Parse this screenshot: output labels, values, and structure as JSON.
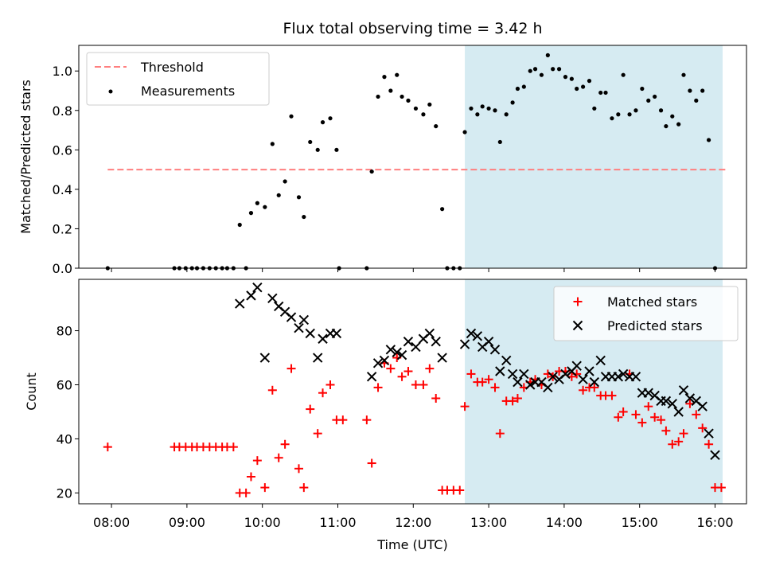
{
  "chart_data": [
    {
      "type": "scatter",
      "title": "Flux total observing time = 3.42 h",
      "ylabel": "Matched/Predicted stars",
      "xlabel": "",
      "ylim": [
        0,
        1.13
      ],
      "yticks": [
        "0.0",
        "0.2",
        "0.4",
        "0.6",
        "0.8",
        "1.0"
      ],
      "shaded_span": {
        "start": "12:41",
        "end": "16:06",
        "color": "#add8e6"
      },
      "threshold": {
        "name": "Threshold",
        "value": 0.5,
        "x_start": "07:57",
        "x_end": "16:10",
        "color": "#ff7f7f",
        "style": "dashed"
      },
      "legend": {
        "position": "upper-left",
        "entries": [
          "Threshold",
          "Measurements"
        ]
      },
      "series": [
        {
          "name": "Measurements",
          "color": "#000000",
          "marker": "dot",
          "points": [
            [
              "07:57",
              0
            ],
            [
              "08:50",
              0
            ],
            [
              "08:54",
              0
            ],
            [
              "08:59",
              0
            ],
            [
              "09:04",
              0
            ],
            [
              "09:08",
              0
            ],
            [
              "09:13",
              0
            ],
            [
              "09:18",
              0
            ],
            [
              "09:23",
              0
            ],
            [
              "09:28",
              0
            ],
            [
              "09:32",
              0
            ],
            [
              "09:37",
              0
            ],
            [
              "09:47",
              0
            ],
            [
              "09:42",
              0.22
            ],
            [
              "09:51",
              0.28
            ],
            [
              "09:56",
              0.33
            ],
            [
              "10:02",
              0.31
            ],
            [
              "10:08",
              0.63
            ],
            [
              "10:13",
              0.37
            ],
            [
              "10:18",
              0.44
            ],
            [
              "10:23",
              0.77
            ],
            [
              "10:29",
              0.36
            ],
            [
              "10:33",
              0.26
            ],
            [
              "10:38",
              0.64
            ],
            [
              "10:44",
              0.6
            ],
            [
              "10:48",
              0.74
            ],
            [
              "10:54",
              0.76
            ],
            [
              "10:59",
              0.6
            ],
            [
              "11:01",
              0
            ],
            [
              "11:23",
              0
            ],
            [
              "11:27",
              0.49
            ],
            [
              "11:32",
              0.87
            ],
            [
              "11:37",
              0.97
            ],
            [
              "11:42",
              0.9
            ],
            [
              "11:47",
              0.98
            ],
            [
              "11:51",
              0.87
            ],
            [
              "11:56",
              0.85
            ],
            [
              "12:02",
              0.81
            ],
            [
              "12:08",
              0.78
            ],
            [
              "12:13",
              0.83
            ],
            [
              "12:18",
              0.72
            ],
            [
              "12:23",
              0.3
            ],
            [
              "12:27",
              0
            ],
            [
              "12:32",
              0
            ],
            [
              "12:37",
              0
            ],
            [
              "12:41",
              0.69
            ],
            [
              "12:46",
              0.81
            ],
            [
              "12:51",
              0.78
            ],
            [
              "12:55",
              0.82
            ],
            [
              "13:00",
              0.81
            ],
            [
              "13:05",
              0.8
            ],
            [
              "13:09",
              0.64
            ],
            [
              "13:14",
              0.78
            ],
            [
              "13:19",
              0.84
            ],
            [
              "13:23",
              0.91
            ],
            [
              "13:28",
              0.92
            ],
            [
              "13:33",
              1.0
            ],
            [
              "13:37",
              1.01
            ],
            [
              "13:42",
              0.98
            ],
            [
              "13:47",
              1.08
            ],
            [
              "13:51",
              1.01
            ],
            [
              "13:56",
              1.01
            ],
            [
              "14:01",
              0.97
            ],
            [
              "14:06",
              0.96
            ],
            [
              "14:10",
              0.91
            ],
            [
              "14:15",
              0.92
            ],
            [
              "14:20",
              0.95
            ],
            [
              "14:24",
              0.81
            ],
            [
              "14:29",
              0.89
            ],
            [
              "14:33",
              0.89
            ],
            [
              "14:38",
              0.76
            ],
            [
              "14:43",
              0.78
            ],
            [
              "14:47",
              0.98
            ],
            [
              "14:52",
              0.78
            ],
            [
              "14:57",
              0.8
            ],
            [
              "15:02",
              0.91
            ],
            [
              "15:07",
              0.85
            ],
            [
              "15:12",
              0.87
            ],
            [
              "15:17",
              0.8
            ],
            [
              "15:21",
              0.72
            ],
            [
              "15:26",
              0.77
            ],
            [
              "15:31",
              0.73
            ],
            [
              "15:35",
              0.98
            ],
            [
              "15:40",
              0.9
            ],
            [
              "15:45",
              0.85
            ],
            [
              "15:50",
              0.9
            ],
            [
              "15:55",
              0.65
            ],
            [
              "16:00",
              0
            ]
          ]
        }
      ]
    },
    {
      "type": "scatter",
      "title": "",
      "ylabel": "Count",
      "xlabel": "Time (UTC)",
      "ylim": [
        16,
        99
      ],
      "yticks": [
        "20",
        "40",
        "60",
        "80"
      ],
      "xticks": [
        "08:00",
        "09:00",
        "10:00",
        "11:00",
        "12:00",
        "13:00",
        "14:00",
        "15:00",
        "16:00"
      ],
      "shaded_span": {
        "start": "12:41",
        "end": "16:06",
        "color": "#add8e6"
      },
      "legend": {
        "position": "upper-right",
        "entries": [
          "Matched stars",
          "Predicted stars"
        ]
      },
      "series": [
        {
          "name": "Matched stars",
          "color": "#ff0000",
          "marker": "plus",
          "points": [
            [
              "07:57",
              37
            ],
            [
              "08:50",
              37
            ],
            [
              "08:54",
              37
            ],
            [
              "08:59",
              37
            ],
            [
              "09:04",
              37
            ],
            [
              "09:08",
              37
            ],
            [
              "09:13",
              37
            ],
            [
              "09:18",
              37
            ],
            [
              "09:23",
              37
            ],
            [
              "09:28",
              37
            ],
            [
              "09:32",
              37
            ],
            [
              "09:37",
              37
            ],
            [
              "09:42",
              20
            ],
            [
              "09:47",
              20
            ],
            [
              "09:51",
              26
            ],
            [
              "09:56",
              32
            ],
            [
              "10:02",
              22
            ],
            [
              "10:08",
              58
            ],
            [
              "10:13",
              33
            ],
            [
              "10:18",
              38
            ],
            [
              "10:23",
              66
            ],
            [
              "10:29",
              29
            ],
            [
              "10:33",
              22
            ],
            [
              "10:38",
              51
            ],
            [
              "10:44",
              42
            ],
            [
              "10:48",
              57
            ],
            [
              "10:54",
              60
            ],
            [
              "10:59",
              47
            ],
            [
              "11:04",
              47
            ],
            [
              "11:23",
              47
            ],
            [
              "11:27",
              31
            ],
            [
              "11:32",
              59
            ],
            [
              "11:37",
              68
            ],
            [
              "11:42",
              66
            ],
            [
              "11:47",
              70
            ],
            [
              "11:51",
              63
            ],
            [
              "11:56",
              65
            ],
            [
              "12:02",
              60
            ],
            [
              "12:08",
              60
            ],
            [
              "12:13",
              66
            ],
            [
              "12:18",
              55
            ],
            [
              "12:23",
              21
            ],
            [
              "12:27",
              21
            ],
            [
              "12:32",
              21
            ],
            [
              "12:37",
              21
            ],
            [
              "12:41",
              52
            ],
            [
              "12:46",
              64
            ],
            [
              "12:51",
              61
            ],
            [
              "12:55",
              61
            ],
            [
              "13:00",
              62
            ],
            [
              "13:05",
              59
            ],
            [
              "13:09",
              42
            ],
            [
              "13:14",
              54
            ],
            [
              "13:19",
              54
            ],
            [
              "13:23",
              55
            ],
            [
              "13:28",
              59
            ],
            [
              "13:33",
              61
            ],
            [
              "13:37",
              62
            ],
            [
              "13:42",
              60
            ],
            [
              "13:47",
              64
            ],
            [
              "13:51",
              63
            ],
            [
              "13:56",
              65
            ],
            [
              "14:01",
              65
            ],
            [
              "14:06",
              63
            ],
            [
              "14:10",
              64
            ],
            [
              "14:15",
              58
            ],
            [
              "14:20",
              59
            ],
            [
              "14:24",
              59
            ],
            [
              "14:29",
              56
            ],
            [
              "14:33",
              56
            ],
            [
              "14:38",
              56
            ],
            [
              "14:43",
              48
            ],
            [
              "14:47",
              50
            ],
            [
              "14:52",
              64
            ],
            [
              "14:57",
              49
            ],
            [
              "15:02",
              46
            ],
            [
              "15:07",
              52
            ],
            [
              "15:12",
              48
            ],
            [
              "15:17",
              47
            ],
            [
              "15:21",
              43
            ],
            [
              "15:26",
              38
            ],
            [
              "15:31",
              39
            ],
            [
              "15:35",
              42
            ],
            [
              "15:40",
              53
            ],
            [
              "15:45",
              49
            ],
            [
              "15:50",
              44
            ],
            [
              "15:55",
              38
            ],
            [
              "16:00",
              22
            ],
            [
              "16:05",
              22
            ]
          ]
        },
        {
          "name": "Predicted stars",
          "color": "#000000",
          "marker": "x",
          "points": [
            [
              "09:42",
              90
            ],
            [
              "09:51",
              93
            ],
            [
              "09:56",
              96
            ],
            [
              "10:02",
              70
            ],
            [
              "10:08",
              92
            ],
            [
              "10:13",
              89
            ],
            [
              "10:18",
              87
            ],
            [
              "10:23",
              85
            ],
            [
              "10:29",
              81
            ],
            [
              "10:33",
              84
            ],
            [
              "10:38",
              79
            ],
            [
              "10:44",
              70
            ],
            [
              "10:48",
              77
            ],
            [
              "10:54",
              79
            ],
            [
              "10:59",
              79
            ],
            [
              "11:27",
              63
            ],
            [
              "11:32",
              68
            ],
            [
              "11:37",
              69
            ],
            [
              "11:42",
              73
            ],
            [
              "11:47",
              72
            ],
            [
              "11:51",
              71
            ],
            [
              "11:56",
              76
            ],
            [
              "12:02",
              74
            ],
            [
              "12:08",
              77
            ],
            [
              "12:13",
              79
            ],
            [
              "12:18",
              76
            ],
            [
              "12:23",
              70
            ],
            [
              "12:41",
              75
            ],
            [
              "12:46",
              79
            ],
            [
              "12:51",
              78
            ],
            [
              "12:55",
              74
            ],
            [
              "13:00",
              76
            ],
            [
              "13:05",
              73
            ],
            [
              "13:09",
              65
            ],
            [
              "13:14",
              69
            ],
            [
              "13:19",
              64
            ],
            [
              "13:23",
              61
            ],
            [
              "13:28",
              64
            ],
            [
              "13:33",
              60
            ],
            [
              "13:37",
              61
            ],
            [
              "13:42",
              61
            ],
            [
              "13:47",
              59
            ],
            [
              "13:51",
              63
            ],
            [
              "13:56",
              62
            ],
            [
              "14:01",
              64
            ],
            [
              "14:06",
              65
            ],
            [
              "14:10",
              67
            ],
            [
              "14:15",
              62
            ],
            [
              "14:20",
              65
            ],
            [
              "14:24",
              61
            ],
            [
              "14:29",
              69
            ],
            [
              "14:33",
              63
            ],
            [
              "14:38",
              63
            ],
            [
              "14:43",
              63
            ],
            [
              "14:47",
              64
            ],
            [
              "14:52",
              63
            ],
            [
              "14:57",
              63
            ],
            [
              "15:02",
              57
            ],
            [
              "15:07",
              57
            ],
            [
              "15:12",
              56
            ],
            [
              "15:17",
              54
            ],
            [
              "15:21",
              54
            ],
            [
              "15:26",
              53
            ],
            [
              "15:31",
              50
            ],
            [
              "15:35",
              58
            ],
            [
              "15:40",
              55
            ],
            [
              "15:45",
              54
            ],
            [
              "15:50",
              52
            ],
            [
              "15:55",
              42
            ],
            [
              "16:00",
              34
            ]
          ]
        }
      ]
    }
  ]
}
